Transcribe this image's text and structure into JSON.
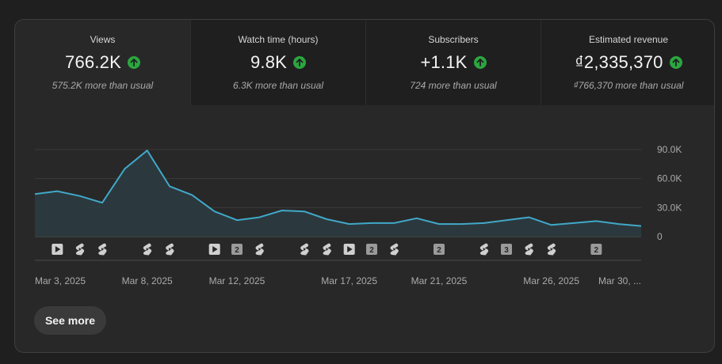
{
  "metrics": [
    {
      "title": "Views",
      "value": "766.2K",
      "sub": "575.2K more than usual",
      "trend": "up",
      "active": true
    },
    {
      "title": "Watch time (hours)",
      "value": "9.8K",
      "sub": "6.3K more than usual",
      "trend": "up",
      "active": false
    },
    {
      "title": "Subscribers",
      "value": "+1.1K",
      "sub": "724 more than usual",
      "trend": "up",
      "active": false
    },
    {
      "title": "Estimated revenue",
      "value": "₫2,335,370",
      "sub": "₫766,370 more than usual",
      "trend": "up",
      "active": false
    }
  ],
  "colors": {
    "line": "#41a8c8",
    "area": "#2b3b40",
    "up_badge": "#2ba640",
    "grid": "#3a3a3a"
  },
  "chart_data": {
    "type": "area",
    "x": [
      "Mar 3",
      "Mar 4",
      "Mar 5",
      "Mar 6",
      "Mar 7",
      "Mar 8",
      "Mar 9",
      "Mar 10",
      "Mar 11",
      "Mar 12",
      "Mar 13",
      "Mar 14",
      "Mar 15",
      "Mar 16",
      "Mar 17",
      "Mar 18",
      "Mar 19",
      "Mar 20",
      "Mar 21",
      "Mar 22",
      "Mar 23",
      "Mar 24",
      "Mar 25",
      "Mar 26",
      "Mar 27",
      "Mar 28",
      "Mar 29",
      "Mar 30"
    ],
    "series": [
      {
        "values": [
          44000,
          47000,
          42000,
          35000,
          70000,
          89000,
          52000,
          43000,
          26000,
          17000,
          20000,
          27000,
          26000,
          18000,
          13000,
          14000,
          14000,
          19000,
          13000,
          13000,
          14000,
          17000,
          20000,
          12000,
          14000,
          16000,
          13000,
          11000
        ]
      }
    ],
    "y_ticks": [
      "90.0K",
      "60.0K",
      "30.0K",
      "0"
    ],
    "y_tick_values": [
      90000,
      60000,
      30000,
      0
    ],
    "ylim": [
      0,
      90000
    ],
    "x_tick_labels": [
      "Mar 3, 2025",
      "Mar 8, 2025",
      "Mar 12, 2025",
      "Mar 17, 2025",
      "Mar 21, 2025",
      "Mar 26, 2025",
      "Mar 30, ..."
    ],
    "x_tick_index": [
      0,
      5,
      9,
      14,
      18,
      23,
      27
    ],
    "grid": true,
    "legend": "none",
    "content_markers": [
      {
        "index": 1,
        "kind": "video"
      },
      {
        "index": 2,
        "kind": "short"
      },
      {
        "index": 3,
        "kind": "short"
      },
      {
        "index": 5,
        "kind": "short"
      },
      {
        "index": 6,
        "kind": "short"
      },
      {
        "index": 8,
        "kind": "video"
      },
      {
        "index": 9,
        "kind": "count",
        "label": "2"
      },
      {
        "index": 10,
        "kind": "short"
      },
      {
        "index": 12,
        "kind": "short"
      },
      {
        "index": 13,
        "kind": "short"
      },
      {
        "index": 14,
        "kind": "video"
      },
      {
        "index": 15,
        "kind": "count",
        "label": "2"
      },
      {
        "index": 16,
        "kind": "short"
      },
      {
        "index": 18,
        "kind": "count",
        "label": "2"
      },
      {
        "index": 20,
        "kind": "short"
      },
      {
        "index": 21,
        "kind": "count",
        "label": "3"
      },
      {
        "index": 22,
        "kind": "short"
      },
      {
        "index": 23,
        "kind": "short"
      },
      {
        "index": 25,
        "kind": "count",
        "label": "2"
      }
    ]
  },
  "buttons": {
    "see_more": "See more"
  }
}
